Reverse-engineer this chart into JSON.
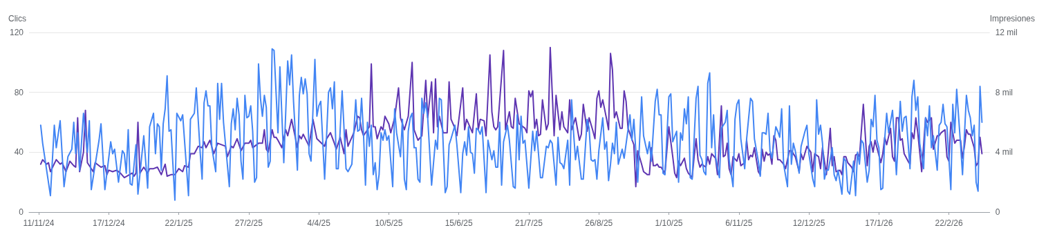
{
  "chart_data": {
    "type": "line",
    "ylabel": "Clics",
    "y2label": "Impresiones",
    "xlim": [
      "2024-11-06",
      "2026-03-15"
    ],
    "xticks": [
      {
        "value": "2024-11-11",
        "label": "11/11/24"
      },
      {
        "value": "2024-12-17",
        "label": "17/12/24"
      },
      {
        "value": "2025-01-22",
        "label": "22/1/25"
      },
      {
        "value": "2025-02-27",
        "label": "27/2/25"
      },
      {
        "value": "2025-04-04",
        "label": "4/4/25"
      },
      {
        "value": "2025-05-10",
        "label": "10/5/25"
      },
      {
        "value": "2025-06-15",
        "label": "15/6/25"
      },
      {
        "value": "2025-07-21",
        "label": "21/7/25"
      },
      {
        "value": "2025-08-26",
        "label": "26/8/25"
      },
      {
        "value": "2025-10-01",
        "label": "1/10/25"
      },
      {
        "value": "2025-11-06",
        "label": "6/11/25"
      },
      {
        "value": "2025-12-12",
        "label": "12/12/25"
      },
      {
        "value": "2026-01-17",
        "label": "17/1/26"
      },
      {
        "value": "2026-02-22",
        "label": "22/2/26"
      }
    ],
    "ylim": [
      0,
      120
    ],
    "yticks": [
      0,
      40,
      80,
      120
    ],
    "y2lim": [
      0,
      12
    ],
    "y2ticks": [
      0,
      {
        "value": 4,
        "label": "4 mil"
      },
      {
        "value": 8,
        "label": "8 mil"
      },
      {
        "value": 12,
        "label": "12 mil"
      }
    ],
    "grid": "y",
    "series": [
      {
        "color": "#5e35b1",
        "axis": "y2",
        "x": [
          "2024-11-12",
          "2024-11-13",
          "2024-11-15",
          "2024-11-16",
          "2024-11-17",
          "2024-11-20",
          "2024-11-22",
          "2024-11-23",
          "2024-11-25",
          "2024-11-27",
          "2024-11-29",
          "2024-11-30",
          "2024-12-01",
          "2024-12-02",
          "2024-12-04",
          "2024-12-05",
          "2024-12-06",
          "2024-12-09",
          "2024-12-10",
          "2024-12-13",
          "2024-12-15",
          "2024-12-16",
          "2024-12-17",
          "2024-12-19",
          "2024-12-21",
          "2024-12-23",
          "2024-12-25",
          "2024-12-29",
          "2024-12-30",
          "2024-12-31",
          "2025-01-01",
          "2025-01-02",
          "2025-01-04",
          "2025-01-06",
          "2025-01-07",
          "2025-01-09",
          "2025-01-11",
          "2025-01-13",
          "2025-01-15",
          "2025-01-16",
          "2025-01-18",
          "2025-01-20",
          "2025-01-22",
          "2025-01-24",
          "2025-01-25",
          "2025-01-27",
          "2025-01-28",
          "2025-01-30",
          "2025-02-01",
          "2025-02-03",
          "2025-02-04",
          "2025-02-05",
          "2025-02-07",
          "2025-02-09",
          "2025-02-11",
          "2025-02-15",
          "2025-02-16",
          "2025-02-18",
          "2025-02-19",
          "2025-02-21",
          "2025-02-23",
          "2025-02-25",
          "2025-02-27",
          "2025-02-28",
          "2025-03-01",
          "2025-03-04",
          "2025-03-06",
          "2025-03-07",
          "2025-03-08",
          "2025-03-09",
          "2025-03-11",
          "2025-03-12",
          "2025-03-13",
          "2025-03-14",
          "2025-03-16",
          "2025-03-18",
          "2025-03-19",
          "2025-03-21",
          "2025-03-24",
          "2025-03-25",
          "2025-03-26",
          "2025-03-27",
          "2025-03-30",
          "2025-04-01",
          "2025-04-03",
          "2025-04-07",
          "2025-04-08",
          "2025-04-10",
          "2025-04-12",
          "2025-04-13",
          "2025-04-15",
          "2025-04-17",
          "2025-04-18",
          "2025-04-19",
          "2025-04-22",
          "2025-04-24",
          "2025-04-25",
          "2025-04-26",
          "2025-04-27",
          "2025-04-30",
          "2025-05-01",
          "2025-05-02",
          "2025-05-03",
          "2025-05-04",
          "2025-05-06",
          "2025-05-07",
          "2025-05-08",
          "2025-05-10",
          "2025-05-11",
          "2025-05-13",
          "2025-05-15",
          "2025-05-16",
          "2025-05-18",
          "2025-05-20",
          "2025-05-22",
          "2025-05-23",
          "2025-05-25",
          "2025-05-27",
          "2025-05-29",
          "2025-05-30",
          "2025-06-01",
          "2025-06-02",
          "2025-06-03",
          "2025-06-04",
          "2025-06-05",
          "2025-06-07",
          "2025-06-09",
          "2025-06-10",
          "2025-06-11",
          "2025-06-13",
          "2025-06-14",
          "2025-06-17",
          "2025-06-18",
          "2025-06-19",
          "2025-06-22",
          "2025-06-24",
          "2025-06-25",
          "2025-06-26",
          "2025-06-28",
          "2025-06-29",
          "2025-07-01",
          "2025-07-02",
          "2025-07-03",
          "2025-07-04",
          "2025-07-05",
          "2025-07-08",
          "2025-07-09",
          "2025-07-11",
          "2025-07-12",
          "2025-07-13",
          "2025-07-14",
          "2025-07-16",
          "2025-07-17",
          "2025-07-19",
          "2025-07-20",
          "2025-07-21",
          "2025-07-22",
          "2025-07-23",
          "2025-07-24",
          "2025-07-25",
          "2025-07-26",
          "2025-07-27",
          "2025-07-28",
          "2025-07-30",
          "2025-07-31",
          "2025-08-01",
          "2025-08-03",
          "2025-08-04",
          "2025-08-06",
          "2025-08-07",
          "2025-08-08",
          "2025-08-10",
          "2025-08-11",
          "2025-08-12",
          "2025-08-14",
          "2025-08-16",
          "2025-08-17",
          "2025-08-18",
          "2025-08-20",
          "2025-08-21",
          "2025-08-23",
          "2025-08-24",
          "2025-08-25",
          "2025-08-26",
          "2025-08-27",
          "2025-08-28",
          "2025-08-30",
          "2025-08-31",
          "2025-09-01",
          "2025-09-02",
          "2025-09-03",
          "2025-09-04",
          "2025-09-06",
          "2025-09-07",
          "2025-09-08",
          "2025-09-09",
          "2025-09-10",
          "2025-09-13",
          "2025-09-14",
          "2025-09-15",
          "2025-09-17",
          "2025-09-18",
          "2025-09-20",
          "2025-09-21",
          "2025-09-22",
          "2025-09-23",
          "2025-09-24",
          "2025-09-25",
          "2025-09-26",
          "2025-09-27",
          "2025-09-29",
          "2025-10-01",
          "2025-10-03",
          "2025-10-04",
          "2025-10-05",
          "2025-10-06",
          "2025-10-07",
          "2025-10-09",
          "2025-10-10",
          "2025-10-11",
          "2025-10-13",
          "2025-10-14",
          "2025-10-15",
          "2025-10-16",
          "2025-10-17",
          "2025-10-18",
          "2025-10-20",
          "2025-10-21",
          "2025-10-22",
          "2025-10-23",
          "2025-10-25",
          "2025-10-26",
          "2025-10-28",
          "2025-10-29",
          "2025-10-30",
          "2025-10-31",
          "2025-11-01",
          "2025-11-02",
          "2025-11-03",
          "2025-11-05",
          "2025-11-06",
          "2025-11-07",
          "2025-11-09",
          "2025-11-10",
          "2025-11-11",
          "2025-11-12",
          "2025-11-13",
          "2025-11-14",
          "2025-11-16",
          "2025-11-17",
          "2025-11-18",
          "2025-11-19",
          "2025-11-20",
          "2025-11-21",
          "2025-11-22",
          "2025-11-23",
          "2025-11-24",
          "2025-11-25",
          "2025-11-26",
          "2025-11-27",
          "2025-11-29",
          "2025-11-30",
          "2025-12-02",
          "2025-12-03",
          "2025-12-05",
          "2025-12-07",
          "2025-12-08",
          "2025-12-09",
          "2025-12-11",
          "2025-12-13",
          "2025-12-14",
          "2025-12-15",
          "2025-12-17",
          "2025-12-18",
          "2025-12-19",
          "2025-12-21",
          "2025-12-23",
          "2025-12-24",
          "2025-12-25",
          "2025-12-26",
          "2025-12-28",
          "2025-12-29",
          "2025-12-30",
          "2025-12-31",
          "2026-01-01",
          "2026-01-03",
          "2026-01-04",
          "2026-01-05",
          "2026-01-06",
          "2026-01-07",
          "2026-01-09",
          "2026-01-11",
          "2026-01-12",
          "2026-01-13",
          "2026-01-14",
          "2026-01-15",
          "2026-01-16",
          "2026-01-18",
          "2026-01-19",
          "2026-01-20",
          "2026-01-21",
          "2026-01-23",
          "2026-01-24",
          "2026-01-25",
          "2026-01-26",
          "2026-01-27",
          "2026-01-28",
          "2026-01-29",
          "2026-01-30",
          "2026-02-01",
          "2026-02-02",
          "2026-02-03",
          "2026-02-04",
          "2026-02-05",
          "2026-02-06",
          "2026-02-08",
          "2026-02-10",
          "2026-02-11",
          "2026-02-13",
          "2026-02-14",
          "2026-02-16",
          "2026-02-17",
          "2026-02-18",
          "2026-02-20",
          "2026-02-21",
          "2026-02-22",
          "2026-02-23",
          "2026-02-25",
          "2026-02-26",
          "2026-02-28",
          "2026-03-01",
          "2026-03-02",
          "2026-03-03",
          "2026-03-04",
          "2026-03-05",
          "2026-03-07",
          "2026-03-08",
          "2026-03-09",
          "2026-03-10",
          "2026-03-11"
        ],
        "values": [
          3.2,
          3.5,
          3.2,
          3.3,
          2.7,
          3.5,
          3.2,
          3.3,
          2.7,
          3.4,
          3.1,
          3.0,
          6.3,
          2.7,
          4.0,
          6.8,
          3.3,
          2.7,
          3.3,
          3.0,
          3.1,
          2.5,
          2.8,
          2.7,
          2.8,
          2.6,
          2.3,
          2.6,
          2.4,
          2.6,
          6.0,
          2.6,
          3.0,
          2.6,
          2.9,
          2.9,
          3.0,
          2.5,
          3.2,
          2.4,
          2.5,
          2.5,
          2.9,
          2.7,
          3.1,
          3.0,
          3.9,
          3.9,
          4.4,
          4.3,
          4.7,
          4.3,
          4.8,
          3.9,
          4.6,
          4.4,
          3.7,
          4.4,
          4.3,
          4.9,
          4.1,
          4.6,
          4.6,
          4.8,
          4.3,
          4.6,
          4.6,
          5.5,
          4.2,
          4.0,
          5.5,
          5.0,
          5.0,
          4.8,
          4.3,
          5.5,
          5.1,
          6.2,
          4.3,
          5.1,
          4.9,
          5.2,
          4.4,
          6.2,
          4.9,
          4.4,
          4.9,
          5.3,
          4.6,
          4.2,
          5.0,
          3.9,
          5.5,
          4.4,
          5.3,
          6.4,
          6.3,
          5.5,
          5.1,
          5.7,
          9.9,
          5.7,
          5.7,
          4.9,
          5.7,
          5.5,
          6.4,
          5.9,
          5.3,
          6.3,
          8.3,
          6.3,
          5.5,
          6.4,
          10.0,
          5.5,
          4.8,
          5.1,
          8.8,
          6.3,
          8.7,
          5.3,
          8.9,
          5.7,
          6.4,
          5.3,
          5.3,
          8.7,
          6.2,
          5.6,
          5.1,
          8.3,
          5.5,
          6.2,
          5.3,
          7.9,
          5.5,
          6.2,
          6.1,
          5.1,
          10.5,
          6.7,
          5.7,
          5.5,
          5.7,
          10.8,
          5.5,
          6.7,
          5.7,
          5.6,
          7.6,
          5.9,
          5.8,
          5.6,
          5.3,
          8.1,
          7.7,
          8.1,
          5.6,
          6.2,
          5.1,
          5.2,
          7.5,
          5.5,
          5.9,
          11.0,
          5.1,
          7.8,
          5.5,
          6.7,
          5.7,
          5.3,
          7.5,
          5.5,
          6.3,
          4.8,
          5.2,
          7.2,
          5.4,
          6.3,
          5.4,
          4.9,
          7.6,
          8.1,
          7.0,
          7.5,
          6.2,
          5.5,
          10.6,
          9.5,
          6.3,
          6.7,
          5.6,
          5.6,
          8.1,
          7.4,
          5.6,
          4.5,
          1.7,
          4.1,
          3.2,
          2.7,
          2.5,
          2.5,
          4.3,
          3.1,
          3.1,
          3.2,
          3.0,
          3.0,
          2.6,
          5.7,
          3.7,
          2.6,
          2.3,
          3.4,
          3.1,
          3.6,
          2.9,
          2.6,
          2.3,
          3.7,
          4.9,
          3.5,
          3.0,
          3.2,
          3.0,
          3.7,
          3.2,
          3.9,
          3.6,
          2.5,
          7.1,
          3.7,
          3.8,
          4.6,
          2.9,
          2.5,
          3.7,
          3.4,
          3.9,
          3.1,
          3.3,
          4.8,
          3.5,
          3.8,
          3.7,
          4.3,
          2.7,
          2.5,
          4.2,
          3.4,
          4.0,
          3.8,
          3.9,
          3.2,
          5.1,
          4.8,
          3.5,
          3.5,
          3.2,
          2.9,
          4.1,
          4.1,
          3.7,
          2.7,
          3.9,
          3.5,
          4.4,
          4.0,
          2.7,
          3.9,
          3.7,
          2.9,
          4.3,
          2.5,
          5.6,
          3.1,
          3.7,
          2.7,
          2.8,
          2.5,
          3.7,
          3.7,
          3.3,
          3.0,
          2.7,
          3.8,
          3.9,
          3.7,
          7.2,
          3.1,
          4.4,
          4.7,
          4.0,
          4.8,
          4.3,
          3.3,
          3.9,
          5.0,
          4.5,
          5.6,
          3.7,
          3.4,
          6.3,
          6.3,
          4.8,
          4.9,
          3.9,
          3.4,
          3.2,
          5.3,
          4.9,
          6.3,
          5.3,
          2.7,
          6.3,
          6.0,
          6.3,
          4.2,
          5.1,
          5.1,
          5.3,
          5.5,
          3.7,
          3.4,
          6.0,
          4.6,
          4.8,
          4.8,
          3.6,
          4.4,
          5.5,
          5.2,
          5.2,
          4.3,
          3.1,
          3.3,
          5.0,
          3.9
        ]
      },
      {
        "color": "#4285f4",
        "x": [
          "2024-11-12",
          "2024-11-13",
          "2024-11-17",
          "2024-11-19",
          "2024-11-20",
          "2024-11-22",
          "2024-11-24",
          "2024-11-26",
          "2024-11-28",
          "2024-11-29",
          "2024-11-30",
          "2024-12-01",
          "2024-12-02",
          "2024-12-04",
          "2024-12-06",
          "2024-12-07",
          "2024-12-08",
          "2024-12-12",
          "2024-12-13",
          "2024-12-15",
          "2024-12-18",
          "2024-12-19",
          "2024-12-20",
          "2024-12-22",
          "2024-12-24",
          "2024-12-25",
          "2024-12-26",
          "2024-12-27",
          "2024-12-28",
          "2024-12-29",
          "2024-12-31",
          "2025-01-01",
          "2025-01-04",
          "2025-01-06",
          "2025-01-07",
          "2025-01-09",
          "2025-01-10",
          "2025-01-11",
          "2025-01-12",
          "2025-01-13",
          "2025-01-14",
          "2025-01-15",
          "2025-01-16",
          "2025-01-17",
          "2025-01-18",
          "2025-01-20",
          "2025-01-21",
          "2025-01-23",
          "2025-01-24",
          "2025-01-27",
          "2025-01-28",
          "2025-01-30",
          "2025-01-31",
          "2025-02-02",
          "2025-02-03",
          "2025-02-04",
          "2025-02-05",
          "2025-02-06",
          "2025-02-07",
          "2025-02-08",
          "2025-02-10",
          "2025-02-11",
          "2025-02-12",
          "2025-02-13",
          "2025-02-14",
          "2025-02-17",
          "2025-02-18",
          "2025-02-19",
          "2025-02-20",
          "2025-02-21",
          "2025-02-22",
          "2025-02-23",
          "2025-02-24",
          "2025-02-25",
          "2025-02-26",
          "2025-02-27",
          "2025-02-28",
          "2025-03-01",
          "2025-03-02",
          "2025-03-03",
          "2025-03-04",
          "2025-03-05",
          "2025-03-06",
          "2025-03-07",
          "2025-03-08",
          "2025-03-09",
          "2025-03-10",
          "2025-03-11",
          "2025-03-12",
          "2025-03-14",
          "2025-03-15",
          "2025-03-17",
          "2025-03-19",
          "2025-03-20",
          "2025-03-21",
          "2025-03-22",
          "2025-03-24",
          "2025-03-25",
          "2025-03-26",
          "2025-03-27",
          "2025-03-28",
          "2025-03-29",
          "2025-03-30",
          "2025-03-31",
          "2025-04-02",
          "2025-04-03",
          "2025-04-04",
          "2025-04-05",
          "2025-04-07",
          "2025-04-09",
          "2025-04-10",
          "2025-04-11",
          "2025-04-12",
          "2025-04-13",
          "2025-04-14",
          "2025-04-16",
          "2025-04-18",
          "2025-04-19",
          "2025-04-21",
          "2025-04-23",
          "2025-04-24",
          "2025-04-25",
          "2025-04-26",
          "2025-04-27",
          "2025-04-28",
          "2025-04-29",
          "2025-04-30",
          "2025-05-01",
          "2025-05-02",
          "2025-05-03",
          "2025-05-04",
          "2025-05-05",
          "2025-05-06",
          "2025-05-07",
          "2025-05-08",
          "2025-05-09",
          "2025-05-10",
          "2025-05-12",
          "2025-05-13",
          "2025-05-14",
          "2025-05-16",
          "2025-05-17",
          "2025-05-18",
          "2025-05-19",
          "2025-05-20",
          "2025-05-21",
          "2025-05-22",
          "2025-05-23",
          "2025-05-24",
          "2025-05-25",
          "2025-05-26",
          "2025-05-27",
          "2025-05-28",
          "2025-05-29",
          "2025-05-30",
          "2025-06-01",
          "2025-06-03",
          "2025-06-04",
          "2025-06-05",
          "2025-06-06",
          "2025-06-08",
          "2025-06-09",
          "2025-06-10",
          "2025-06-11",
          "2025-06-13",
          "2025-06-14",
          "2025-06-16",
          "2025-06-17",
          "2025-06-18",
          "2025-06-19",
          "2025-06-20",
          "2025-06-21",
          "2025-06-22",
          "2025-06-23",
          "2025-06-24",
          "2025-06-25",
          "2025-06-26",
          "2025-06-27",
          "2025-06-29",
          "2025-06-30",
          "2025-07-02",
          "2025-07-03",
          "2025-07-04",
          "2025-07-05",
          "2025-07-06",
          "2025-07-07",
          "2025-07-08",
          "2025-07-10",
          "2025-07-11",
          "2025-07-13",
          "2025-07-14",
          "2025-07-15",
          "2025-07-16",
          "2025-07-17",
          "2025-07-18",
          "2025-07-19",
          "2025-07-21",
          "2025-07-23",
          "2025-07-24",
          "2025-07-25",
          "2025-07-27",
          "2025-07-28",
          "2025-07-30",
          "2025-07-31",
          "2025-08-01",
          "2025-08-02",
          "2025-08-04",
          "2025-08-05",
          "2025-08-06",
          "2025-08-07",
          "2025-08-08",
          "2025-08-10",
          "2025-08-11",
          "2025-08-12",
          "2025-08-13",
          "2025-08-14",
          "2025-08-15",
          "2025-08-17",
          "2025-08-18",
          "2025-08-20",
          "2025-08-21",
          "2025-08-22",
          "2025-08-23",
          "2025-08-24",
          "2025-08-25",
          "2025-08-26",
          "2025-08-28",
          "2025-08-29",
          "2025-08-30",
          "2025-08-31",
          "2025-09-01",
          "2025-09-02",
          "2025-09-03",
          "2025-09-04",
          "2025-09-05",
          "2025-09-07",
          "2025-09-08",
          "2025-09-10",
          "2025-09-11",
          "2025-09-12",
          "2025-09-13",
          "2025-09-15",
          "2025-09-17",
          "2025-09-18",
          "2025-09-20",
          "2025-09-21",
          "2025-09-22",
          "2025-09-24",
          "2025-09-25",
          "2025-09-26",
          "2025-09-27",
          "2025-09-28",
          "2025-09-29",
          "2025-10-01",
          "2025-10-02",
          "2025-10-03",
          "2025-10-05",
          "2025-10-06",
          "2025-10-07",
          "2025-10-08",
          "2025-10-09",
          "2025-10-10",
          "2025-10-11",
          "2025-10-12",
          "2025-10-13",
          "2025-10-15",
          "2025-10-16",
          "2025-10-17",
          "2025-10-18",
          "2025-10-19",
          "2025-10-20",
          "2025-10-21",
          "2025-10-22",
          "2025-10-23",
          "2025-10-24",
          "2025-10-25",
          "2025-10-27",
          "2025-10-28",
          "2025-10-30",
          "2025-10-31",
          "2025-11-01",
          "2025-11-03",
          "2025-11-04",
          "2025-11-05",
          "2025-11-06",
          "2025-11-07",
          "2025-11-09",
          "2025-11-10",
          "2025-11-12",
          "2025-11-13",
          "2025-11-14",
          "2025-11-16",
          "2025-11-17",
          "2025-11-18",
          "2025-11-19",
          "2025-11-20",
          "2025-11-21",
          "2025-11-22",
          "2025-11-23",
          "2025-11-25",
          "2025-11-26",
          "2025-11-27",
          "2025-11-28",
          "2025-11-29",
          "2025-12-01",
          "2025-12-02",
          "2025-12-03",
          "2025-12-04",
          "2025-12-05",
          "2025-12-07",
          "2025-12-08",
          "2025-12-10",
          "2025-12-11",
          "2025-12-12",
          "2025-12-14",
          "2025-12-15",
          "2025-12-16",
          "2025-12-17",
          "2025-12-18",
          "2025-12-19",
          "2025-12-20",
          "2025-12-21",
          "2025-12-22",
          "2025-12-24",
          "2025-12-25",
          "2025-12-26",
          "2025-12-27",
          "2025-12-29",
          "2025-12-30",
          "2025-12-31",
          "2026-01-01",
          "2026-01-02",
          "2026-01-04",
          "2026-01-05",
          "2026-01-06",
          "2026-01-07",
          "2026-01-08",
          "2026-01-09",
          "2026-01-11",
          "2026-01-12",
          "2026-01-13",
          "2026-01-14",
          "2026-01-15",
          "2026-01-16",
          "2026-01-17",
          "2026-01-18",
          "2026-01-19",
          "2026-01-20",
          "2026-01-21",
          "2026-01-22",
          "2026-01-24",
          "2026-01-25",
          "2026-01-26",
          "2026-01-28",
          "2026-01-29",
          "2026-01-30",
          "2026-01-31",
          "2026-02-02",
          "2026-02-03",
          "2026-02-04",
          "2026-02-05",
          "2026-02-06",
          "2026-02-07",
          "2026-02-09",
          "2026-02-10",
          "2026-02-11",
          "2026-02-12",
          "2026-02-13",
          "2026-02-14",
          "2026-02-16",
          "2026-02-17",
          "2026-02-18",
          "2026-02-19",
          "2026-02-20",
          "2026-02-21",
          "2026-02-23",
          "2026-02-24",
          "2026-02-25",
          "2026-02-26",
          "2026-02-28",
          "2026-03-01",
          "2026-03-03",
          "2026-03-04",
          "2026-03-05",
          "2026-03-06",
          "2026-03-07",
          "2026-03-08",
          "2026-03-09",
          "2026-03-10",
          "2026-03-11"
        ],
        "values": [
          58,
          46,
          11,
          58,
          43,
          61,
          17,
          37,
          42,
          60,
          39,
          53,
          28,
          66,
          40,
          61,
          15,
          48,
          59,
          15,
          47,
          39,
          42,
          20,
          41,
          39,
          26,
          55,
          19,
          18,
          45,
          12,
          51,
          16,
          57,
          66,
          39,
          59,
          57,
          28,
          59,
          69,
          91,
          54,
          55,
          8,
          66,
          61,
          65,
          11,
          62,
          66,
          83,
          40,
          22,
          73,
          81,
          71,
          71,
          43,
          27,
          86,
          62,
          86,
          60,
          17,
          59,
          69,
          55,
          76,
          65,
          34,
          22,
          78,
          63,
          64,
          71,
          54,
          20,
          23,
          99,
          76,
          64,
          78,
          70,
          30,
          34,
          109,
          108,
          53,
          97,
          33,
          101,
          85,
          105,
          74,
          28,
          78,
          90,
          79,
          89,
          79,
          39,
          34,
          102,
          64,
          71,
          74,
          22,
          80,
          83,
          69,
          87,
          29,
          29,
          81,
          29,
          27,
          32,
          75,
          54,
          55,
          76,
          52,
          18,
          60,
          44,
          58,
          25,
          33,
          15,
          25,
          53,
          48,
          55,
          48,
          51,
          17,
          69,
          53,
          37,
          62,
          22,
          15,
          54,
          63,
          66,
          43,
          43,
          22,
          20,
          76,
          66,
          73,
          63,
          18,
          48,
          42,
          76,
          75,
          13,
          17,
          45,
          49,
          58,
          45,
          13,
          39,
          47,
          38,
          57,
          40,
          39,
          26,
          56,
          55,
          52,
          57,
          13,
          48,
          35,
          41,
          30,
          30,
          60,
          18,
          47,
          58,
          48,
          17,
          16,
          65,
          35,
          64,
          46,
          48,
          16,
          54,
          41,
          54,
          23,
          23,
          44,
          43,
          48,
          46,
          18,
          50,
          33,
          32,
          29,
          48,
          18,
          75,
          53,
          35,
          44,
          22,
          22,
          62,
          56,
          35,
          34,
          35,
          22,
          41,
          63,
          42,
          47,
          21,
          32,
          46,
          39,
          60,
          32,
          42,
          36,
          55,
          65,
          48,
          62,
          20,
          77,
          51,
          39,
          47,
          34,
          74,
          82,
          65,
          65,
          26,
          25,
          77,
          79,
          47,
          54,
          20,
          53,
          48,
          69,
          59,
          77,
          23,
          22,
          76,
          84,
          38,
          35,
          27,
          25,
          86,
          93,
          43,
          65,
          37,
          23,
          56,
          60,
          68,
          35,
          17,
          62,
          72,
          75,
          49,
          29,
          49,
          76,
          74,
          49,
          34,
          24,
          53,
          53,
          52,
          66,
          41,
          36,
          57,
          54,
          50,
          69,
          32,
          17,
          71,
          32,
          46,
          41,
          26,
          44,
          54,
          58,
          39,
          22,
          17,
          75,
          52,
          58,
          46,
          22,
          28,
          28,
          43,
          25,
          21,
          28,
          12,
          36,
          34,
          14,
          12,
          34,
          11,
          40,
          32,
          48,
          46,
          20,
          28,
          62,
          57,
          78,
          48,
          43,
          15,
          16,
          49,
          66,
          53,
          68,
          48,
          25,
          74,
          54,
          63,
          64,
          29,
          77,
          88,
          68,
          77,
          46,
          29,
          63,
          51,
          71,
          43,
          51,
          28,
          58,
          60,
          72,
          59,
          57,
          15,
          72,
          53,
          82,
          45,
          25,
          78,
          68,
          63,
          51,
          58,
          20,
          14,
          84,
          60
        ]
      }
    ]
  }
}
